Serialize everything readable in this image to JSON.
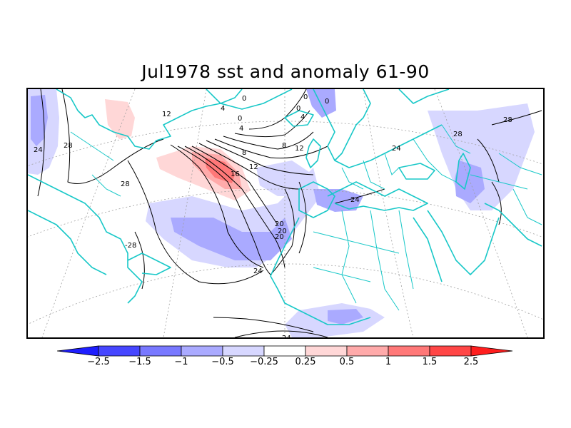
{
  "title": "Jul1978 sst and anomaly 61-90",
  "colors": {
    "coast": "#19c8c8",
    "contour": "#000000",
    "grid": "#a0a0a0"
  },
  "colorbar": {
    "colors": [
      "#1e1eff",
      "#4646ff",
      "#7878ff",
      "#aaaaff",
      "#d7d7ff",
      "#ffffff",
      "#ffd7d7",
      "#ffaaaa",
      "#ff7878",
      "#ff4646",
      "#ff1e1e"
    ],
    "labels": [
      "−2.5",
      "−1.5",
      "−1",
      "−0.5",
      "−0.25",
      "0.25",
      "0.5",
      "1",
      "1.5",
      "2.5"
    ]
  },
  "contour_labels": [
    "24",
    "28",
    "28",
    "-28",
    "12",
    "4",
    "0",
    "4",
    "0",
    "0",
    "0",
    "0",
    "4",
    "8",
    "8",
    "12",
    "12",
    "16",
    "20",
    "20",
    "20",
    "24",
    "24",
    "24",
    "28",
    "28",
    "24"
  ]
}
